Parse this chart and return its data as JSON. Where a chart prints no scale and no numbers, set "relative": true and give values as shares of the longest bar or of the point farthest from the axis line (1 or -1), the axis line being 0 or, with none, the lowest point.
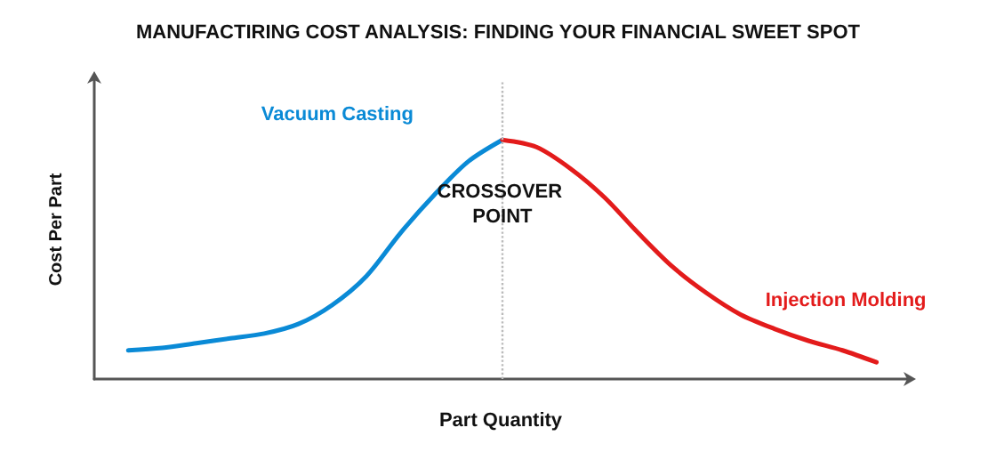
{
  "chart_data": {
    "type": "line",
    "title": "MANUFACTIRING COST ANALYSIS: FINDING YOUR FINANCIAL SWEET SPOT",
    "xlabel": "Part Quantity",
    "ylabel": "Cost Per Part",
    "relative": true,
    "grid": false,
    "legend": false,
    "marker": "none",
    "line_style": "solid",
    "categories": [
      null,
      null,
      null,
      null,
      null,
      null,
      null,
      null,
      null,
      null,
      null,
      null,
      null,
      null,
      null,
      null,
      null,
      null,
      null,
      null,
      null,
      null,
      null
    ],
    "series": [
      {
        "name": "Vacuum Casting",
        "color": "#0a8ad6",
        "values": [
          0.12,
          0.13,
          0.15,
          0.17,
          0.19,
          0.23,
          0.31,
          0.43,
          0.61,
          0.77,
          0.91,
          1.0,
          null,
          null,
          null,
          null,
          null,
          null,
          null,
          null,
          null,
          null,
          null
        ]
      },
      {
        "name": "Injection Molding",
        "color": "#e31b1b",
        "values": [
          null,
          null,
          null,
          null,
          null,
          null,
          null,
          null,
          null,
          null,
          null,
          1.0,
          0.97,
          0.88,
          0.76,
          0.61,
          0.47,
          0.36,
          0.27,
          0.21,
          0.16,
          0.12,
          0.07
        ]
      }
    ],
    "annotations": [
      "CROSSOVER POINT"
    ]
  }
}
